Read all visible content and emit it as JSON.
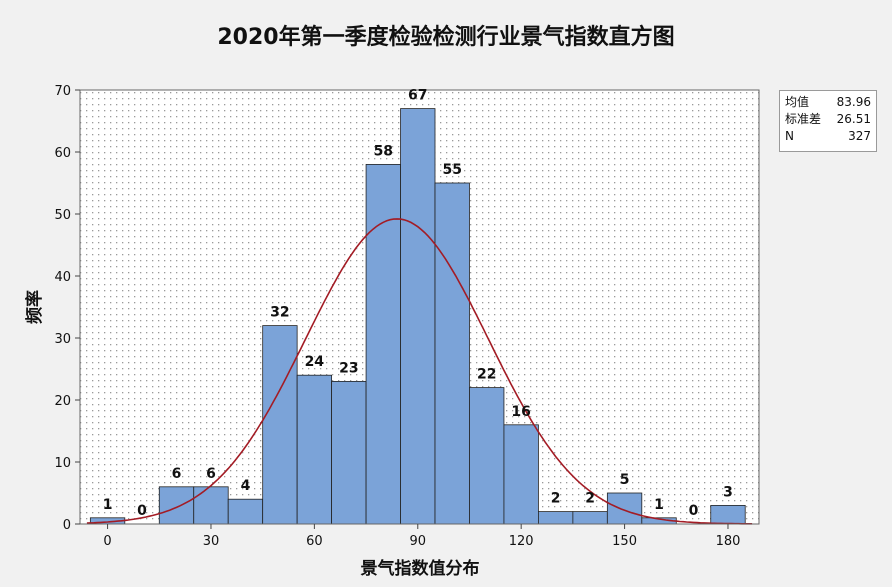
{
  "chart_data": {
    "type": "bar",
    "title": "2020年第一季度检验检测行业景气指数直方图",
    "xlabel": "景气指数值分布",
    "ylabel": "频率",
    "bin_width": 10,
    "categories": [
      "0",
      "10",
      "20",
      "30",
      "40",
      "50",
      "60",
      "70",
      "80",
      "90",
      "100",
      "110",
      "120",
      "130",
      "140",
      "150",
      "160",
      "170",
      "180"
    ],
    "x": [
      0,
      10,
      20,
      30,
      40,
      50,
      60,
      70,
      80,
      90,
      100,
      110,
      120,
      130,
      140,
      150,
      160,
      170,
      180
    ],
    "values": [
      1,
      0,
      6,
      6,
      4,
      32,
      24,
      23,
      58,
      67,
      55,
      22,
      16,
      2,
      2,
      5,
      1,
      0,
      3
    ],
    "data_labels": [
      "1",
      "0",
      "6",
      "6",
      "4",
      "32",
      "24",
      "23",
      "58",
      "67",
      "55",
      "22",
      "16",
      "2",
      "2",
      "5",
      "1",
      "0",
      "3"
    ],
    "x_ticks": [
      "0",
      "30",
      "60",
      "90",
      "120",
      "150",
      "180"
    ],
    "y_ticks": [
      "0",
      "10",
      "20",
      "30",
      "40",
      "50",
      "60",
      "70"
    ],
    "xlim": [
      -8,
      189
    ],
    "ylim": [
      0,
      70
    ],
    "grid": "dotted",
    "fit_curve": {
      "type": "normal",
      "mean": 83.96,
      "std": 26.51,
      "n": 327
    },
    "colors": {
      "bar": "#7ba3d8",
      "bar_edge": "#222222",
      "curve": "#a31c25",
      "plot_bg": "#ffffff",
      "grid": "#9a9a9a"
    },
    "stats_box": {
      "position": "top-right",
      "rows": [
        {
          "label": "均值",
          "value": "83.96"
        },
        {
          "label": "标准差",
          "value": "26.51"
        },
        {
          "label": "N",
          "value": "327"
        }
      ]
    }
  }
}
